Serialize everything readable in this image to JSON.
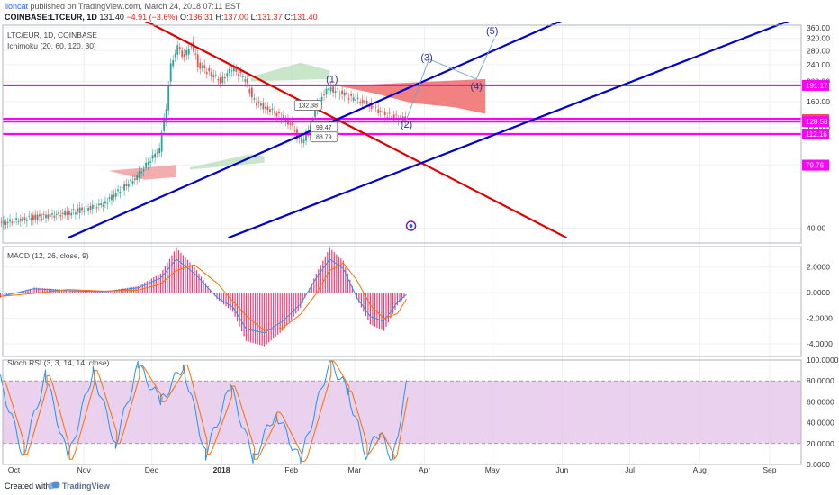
{
  "header": {
    "author": "lioncat",
    "published": "published on TradingView.com, March 24, 2018 07:11 EST",
    "symbol": "COINBASE:LTCEUR, 1D",
    "last": "131.40",
    "change": "−4.91 (−3.6%)",
    "o_label": "O:",
    "o": "136.31",
    "h_label": "H:",
    "h": "137.00",
    "l_label": "L:",
    "l": "131.37",
    "c_label": "C:",
    "c": "131.40"
  },
  "footer": {
    "created": "Created with",
    "brand": "TradingView",
    "logo_icon": "tradingview-logo-icon"
  },
  "colors": {
    "up": "#26a69a",
    "down": "#ef5350",
    "channel": "#0000cc",
    "trend": "#e00000",
    "level": "#ff00ff",
    "macd": "#2196f3",
    "signal": "#ff6d00",
    "hist": "#e91e63",
    "rsi_k": "#2196f3",
    "rsi_d": "#ff6d00",
    "rsi_band": "#e1bee7"
  },
  "chart_data": [
    {
      "type": "line",
      "title": "LTC/EUR, 1D, COINBASE",
      "subtitle": "Ichimoku (20, 60, 120, 30)",
      "y_scale": "log",
      "ylim": [
        34,
        370
      ],
      "y_ticks": [
        "360.00",
        "320.00",
        "280.00",
        "240.00",
        "200.00",
        "160.00",
        "120.00",
        "80.00",
        "40.00"
      ],
      "x_ticks": [
        "Oct",
        "Nov",
        "Dec",
        "2018",
        "Feb",
        "Mar",
        "Apr",
        "May",
        "Jun",
        "Jul",
        "Aug",
        "Sep"
      ],
      "price_tags": [
        {
          "label": "191.17",
          "value": 191.17,
          "color": "#ff00ff"
        },
        {
          "label": "131.40",
          "value": 131.4,
          "color": "#ef5350"
        },
        {
          "label": "128.58",
          "value": 128.58,
          "color": "#ff00ff"
        },
        {
          "label": "112.16",
          "value": 112.16,
          "color": "#ff00ff"
        },
        {
          "label": "79.76",
          "value": 79.76,
          "color": "#ff00ff"
        }
      ],
      "horizontal_levels": [
        191.17,
        132.5,
        128.58,
        112.16
      ],
      "close_series": [
        {
          "date": "2017-09-25",
          "close": 42
        },
        {
          "date": "2017-10-10",
          "close": 45
        },
        {
          "date": "2017-10-25",
          "close": 47
        },
        {
          "date": "2017-11-10",
          "close": 52
        },
        {
          "date": "2017-11-25",
          "close": 70
        },
        {
          "date": "2017-12-05",
          "close": 95
        },
        {
          "date": "2017-12-08",
          "close": 150
        },
        {
          "date": "2017-12-10",
          "close": 240
        },
        {
          "date": "2017-12-13",
          "close": 290
        },
        {
          "date": "2017-12-16",
          "close": 260
        },
        {
          "date": "2017-12-19",
          "close": 300
        },
        {
          "date": "2017-12-22",
          "close": 240
        },
        {
          "date": "2017-12-27",
          "close": 220
        },
        {
          "date": "2018-01-01",
          "close": 200
        },
        {
          "date": "2018-01-06",
          "close": 230
        },
        {
          "date": "2018-01-11",
          "close": 210
        },
        {
          "date": "2018-01-16",
          "close": 160
        },
        {
          "date": "2018-01-21",
          "close": 150
        },
        {
          "date": "2018-01-26",
          "close": 140
        },
        {
          "date": "2018-02-01",
          "close": 125
        },
        {
          "date": "2018-02-06",
          "close": 100
        },
        {
          "date": "2018-02-10",
          "close": 125
        },
        {
          "date": "2018-02-14",
          "close": 165
        },
        {
          "date": "2018-02-18",
          "close": 185
        },
        {
          "date": "2018-02-24",
          "close": 175
        },
        {
          "date": "2018-03-01",
          "close": 165
        },
        {
          "date": "2018-03-08",
          "close": 155
        },
        {
          "date": "2018-03-14",
          "close": 140
        },
        {
          "date": "2018-03-19",
          "close": 135
        },
        {
          "date": "2018-03-24",
          "close": 131.4
        }
      ],
      "annotations": [
        {
          "label": "(1)",
          "date": "2018-02-19",
          "value": 198
        },
        {
          "label": "(2)",
          "date": "2018-03-24",
          "value": 120
        },
        {
          "label": "(3)",
          "date": "2018-04-02",
          "value": 250
        },
        {
          "label": "(4)",
          "date": "2018-04-24",
          "value": 183
        },
        {
          "label": "(5)",
          "date": "2018-05-01",
          "value": 335
        }
      ],
      "callouts": [
        "132.38",
        "99.47",
        "88.79"
      ],
      "projection_path": [
        {
          "date": "2018-03-24",
          "value": 131.4
        },
        {
          "date": "2018-04-03",
          "value": 255
        },
        {
          "date": "2018-04-24",
          "value": 205
        },
        {
          "date": "2018-05-02",
          "value": 320
        }
      ]
    },
    {
      "type": "bar",
      "title": "MACD (12, 26, close, 9)",
      "y_ticks": [
        "2.0000",
        "0.0000",
        "-2.0000",
        "-4.0000"
      ],
      "ylim": [
        -5,
        3.6
      ],
      "histogram": [
        {
          "date": "2017-09-25",
          "value": -0.4
        },
        {
          "date": "2017-10-10",
          "value": 0.4
        },
        {
          "date": "2017-10-25",
          "value": 0.2
        },
        {
          "date": "2017-11-10",
          "value": 0.1
        },
        {
          "date": "2017-11-25",
          "value": 0.5
        },
        {
          "date": "2017-12-05",
          "value": 1.5
        },
        {
          "date": "2017-12-12",
          "value": 3.5
        },
        {
          "date": "2017-12-20",
          "value": 2.0
        },
        {
          "date": "2017-12-30",
          "value": -0.5
        },
        {
          "date": "2018-01-06",
          "value": -1.5
        },
        {
          "date": "2018-01-12",
          "value": -3.8
        },
        {
          "date": "2018-01-20",
          "value": -4.2
        },
        {
          "date": "2018-01-28",
          "value": -3.0
        },
        {
          "date": "2018-02-05",
          "value": -1.2
        },
        {
          "date": "2018-02-12",
          "value": 1.5
        },
        {
          "date": "2018-02-18",
          "value": 3.5
        },
        {
          "date": "2018-02-24",
          "value": 2.5
        },
        {
          "date": "2018-03-02",
          "value": -0.5
        },
        {
          "date": "2018-03-08",
          "value": -2.5
        },
        {
          "date": "2018-03-14",
          "value": -3.0
        },
        {
          "date": "2018-03-20",
          "value": -1.0
        },
        {
          "date": "2018-03-24",
          "value": -0.2
        }
      ]
    },
    {
      "type": "line",
      "title": "Stoch RSI (3, 3, 14, 14, close)",
      "y_ticks": [
        "100.0000",
        "80.0000",
        "60.0000",
        "40.0000",
        "20.0000",
        "0.0000"
      ],
      "ylim": [
        0,
        100
      ],
      "bands": [
        20,
        80
      ],
      "k_series": [
        {
          "date": "2017-09-25",
          "value": 80
        },
        {
          "date": "2017-10-05",
          "value": 10
        },
        {
          "date": "2017-10-15",
          "value": 85
        },
        {
          "date": "2017-10-25",
          "value": 5
        },
        {
          "date": "2017-11-05",
          "value": 90
        },
        {
          "date": "2017-11-15",
          "value": 20
        },
        {
          "date": "2017-11-25",
          "value": 95
        },
        {
          "date": "2017-12-05",
          "value": 60
        },
        {
          "date": "2017-12-15",
          "value": 95
        },
        {
          "date": "2017-12-25",
          "value": 10
        },
        {
          "date": "2018-01-05",
          "value": 75
        },
        {
          "date": "2018-01-15",
          "value": 5
        },
        {
          "date": "2018-01-25",
          "value": 50
        },
        {
          "date": "2018-02-05",
          "value": 3
        },
        {
          "date": "2018-02-18",
          "value": 100
        },
        {
          "date": "2018-02-26",
          "value": 70
        },
        {
          "date": "2018-03-06",
          "value": 10
        },
        {
          "date": "2018-03-12",
          "value": 30
        },
        {
          "date": "2018-03-18",
          "value": 5
        },
        {
          "date": "2018-03-24",
          "value": 75
        }
      ]
    }
  ]
}
